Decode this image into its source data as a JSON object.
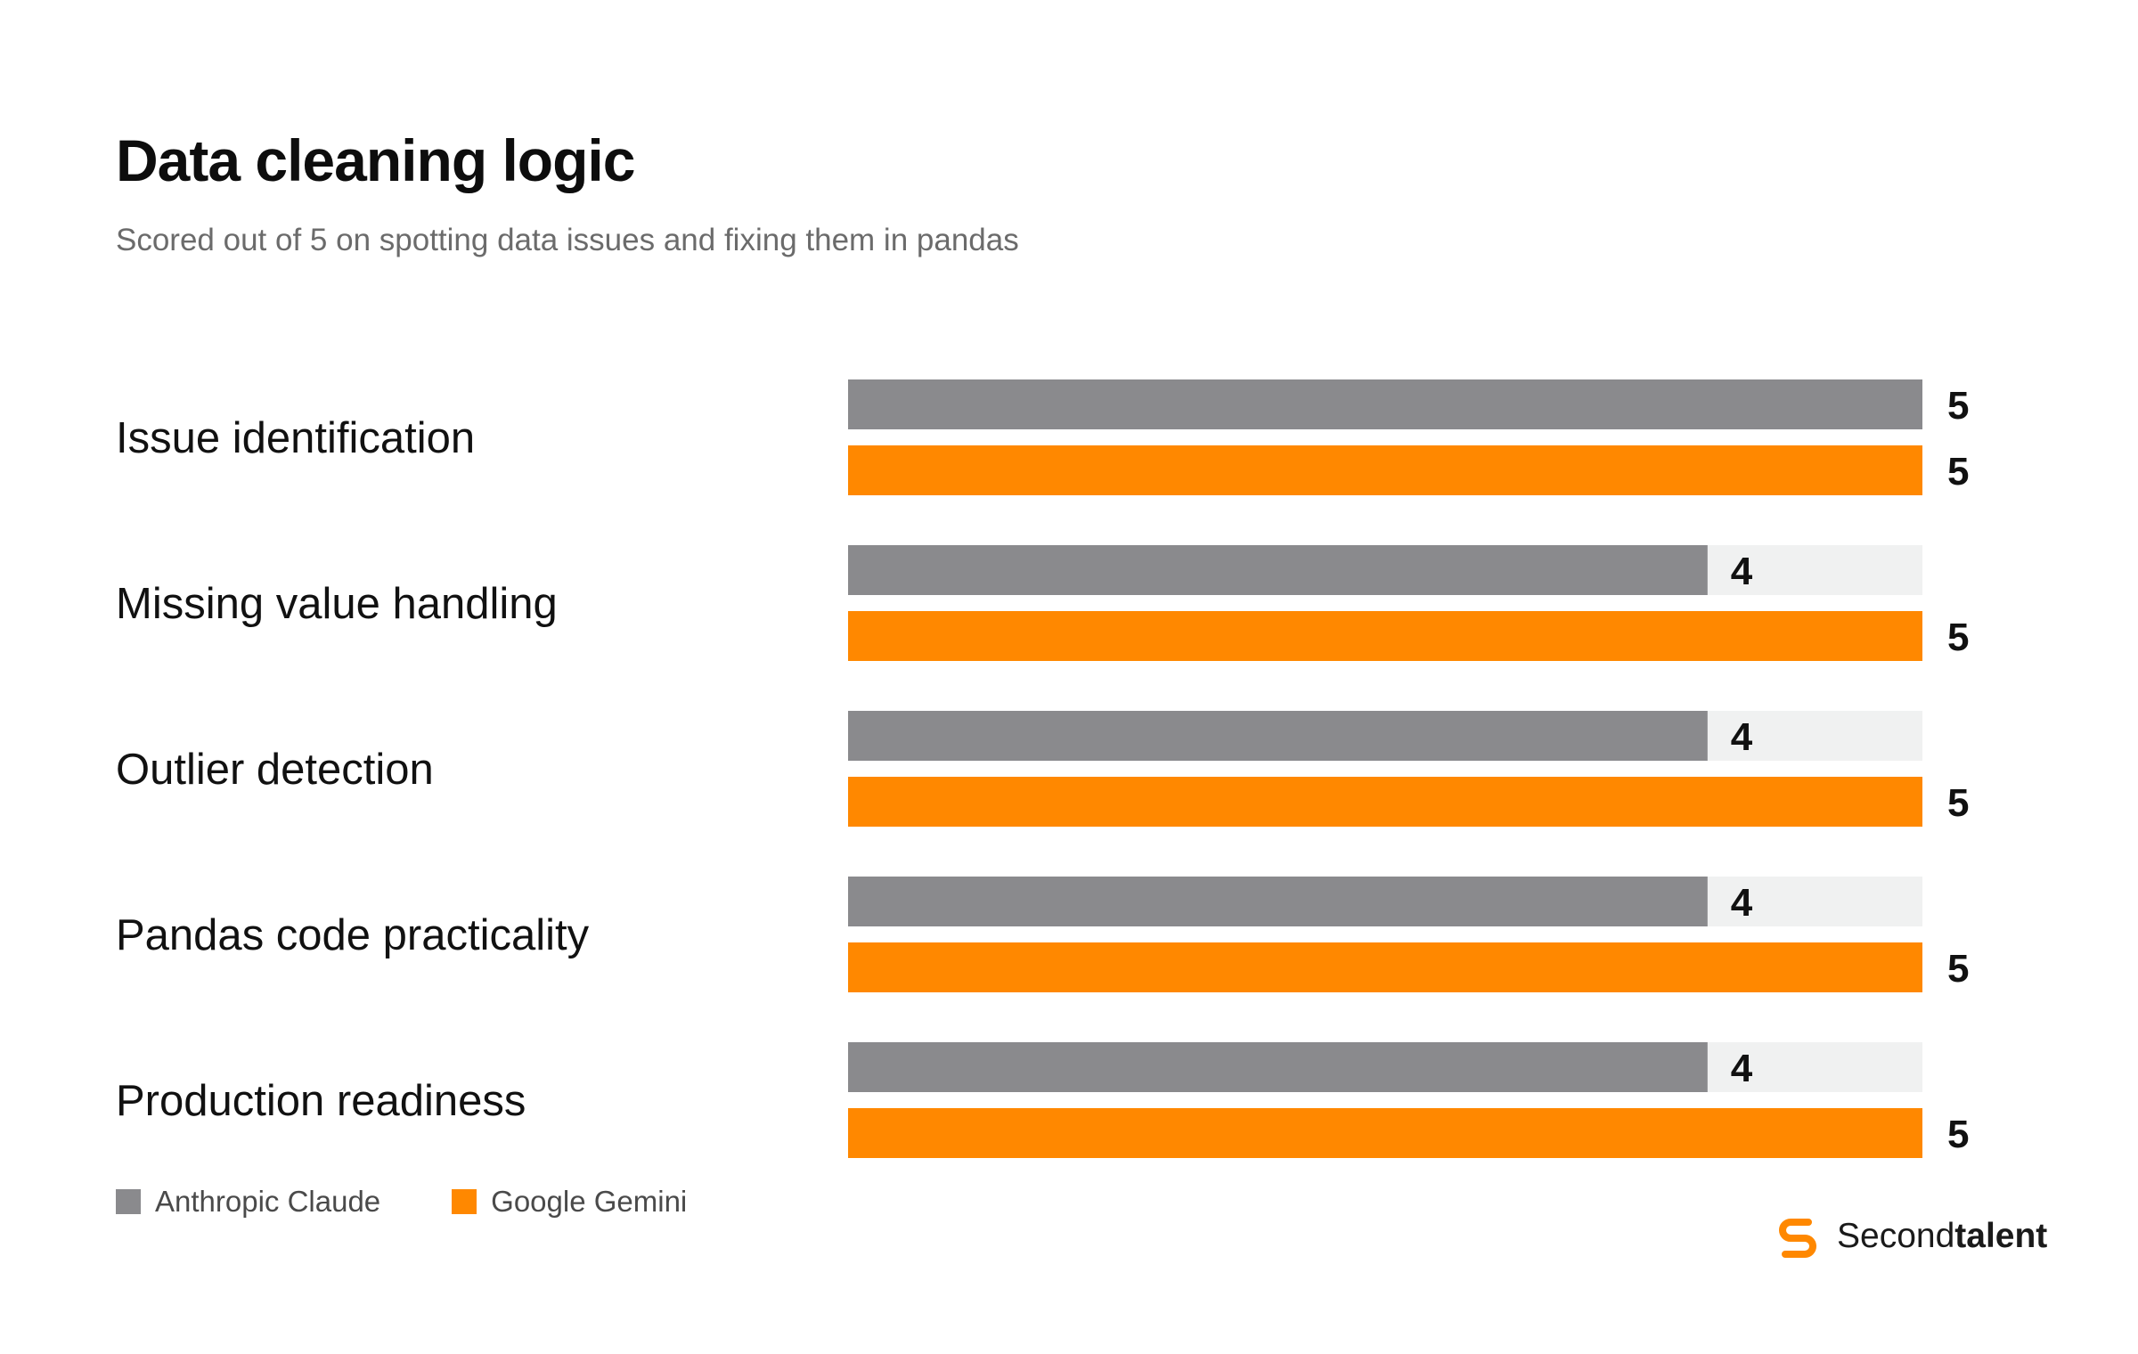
{
  "header": {
    "title": "Data cleaning logic",
    "subtitle": "Scored out of 5 on spotting data issues and fixing them in pandas"
  },
  "chart_data": {
    "type": "bar",
    "orientation": "horizontal",
    "title": "Data cleaning logic",
    "subtitle": "Scored out of 5 on spotting data issues and fixing them in pandas",
    "categories": [
      "Issue identification",
      "Missing value handling",
      "Outlier detection",
      "Pandas code practicality",
      "Production readiness"
    ],
    "series": [
      {
        "name": "Anthropic Claude",
        "values": [
          5,
          4,
          4,
          4,
          4
        ],
        "color": "#8a8a8d"
      },
      {
        "name": "Google Gemini",
        "values": [
          5,
          5,
          5,
          5,
          5
        ],
        "color": "#ff8800"
      }
    ],
    "xlim": [
      0,
      5
    ],
    "track_color": "#f0f1f1",
    "grid": false,
    "legend_position": "bottom-left"
  },
  "legend": {
    "items": [
      {
        "label": "Anthropic Claude",
        "color": "#8a8a8d"
      },
      {
        "label": "Google Gemini",
        "color": "#ff8800"
      }
    ]
  },
  "brand": {
    "name_regular": "Second",
    "name_bold": "talent",
    "accent": "#ff8800",
    "icon": "secondtalent-logo-icon"
  }
}
